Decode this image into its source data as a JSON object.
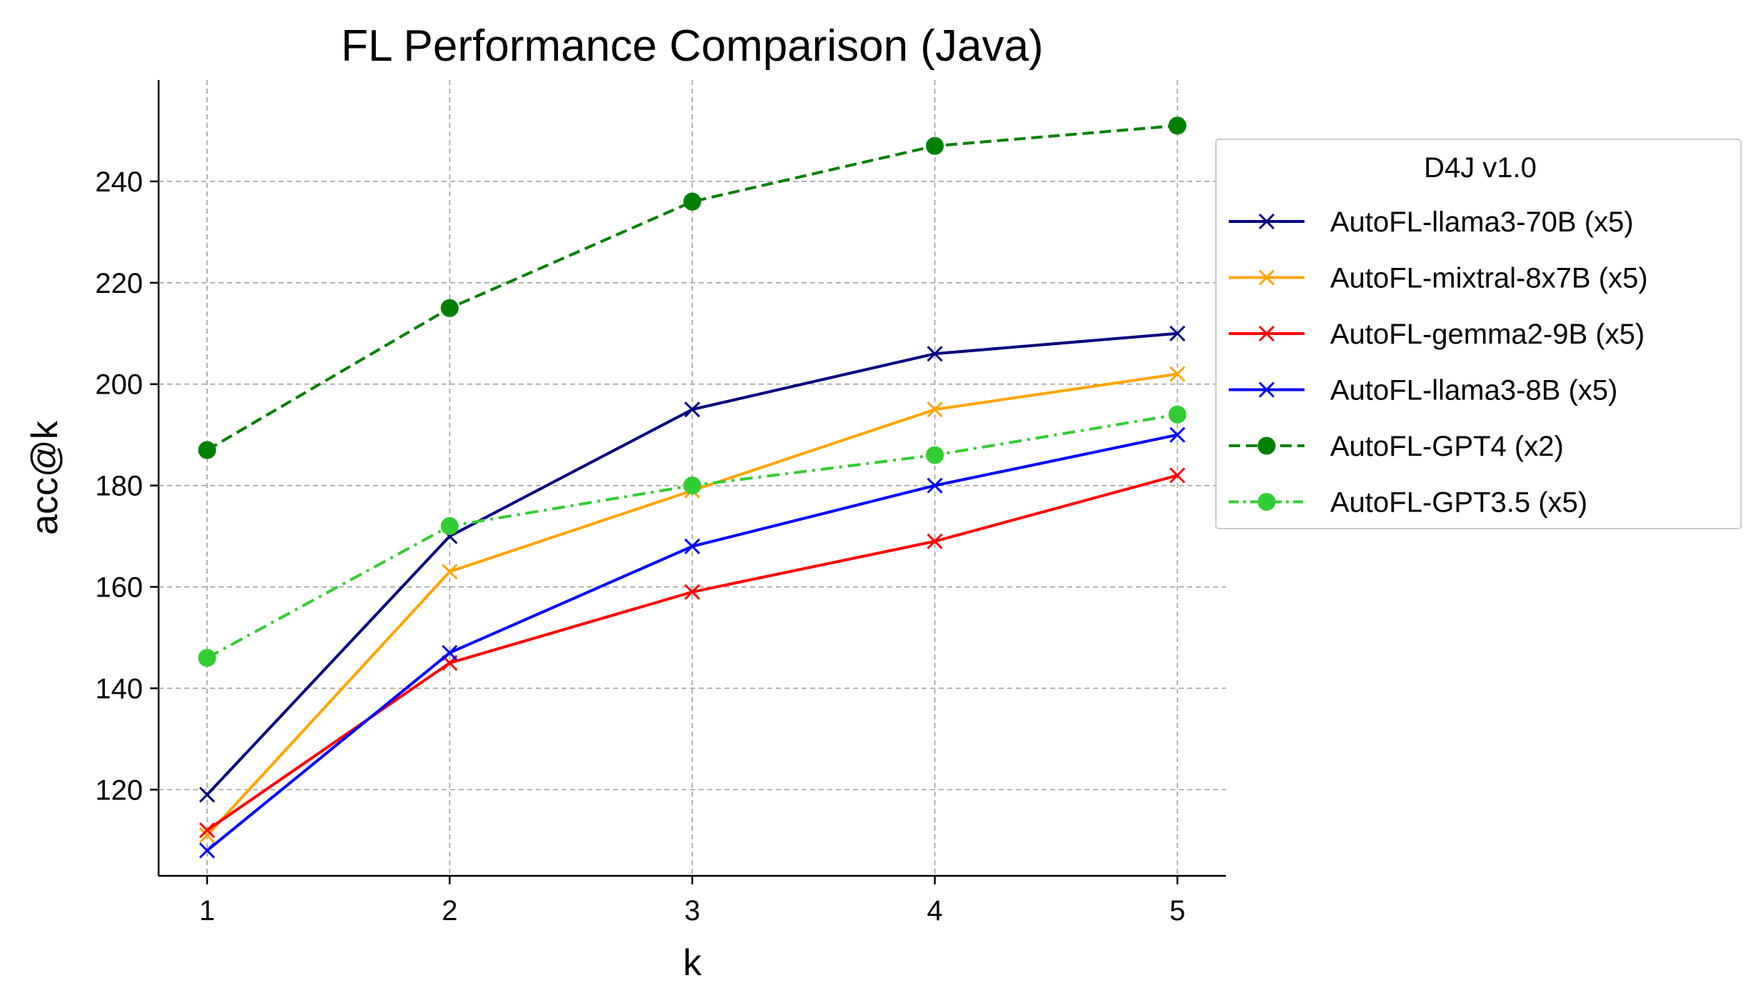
{
  "chart_data": {
    "type": "line",
    "title": "FL Performance Comparison (Java)",
    "xlabel": "k",
    "ylabel": "acc@k",
    "x": [
      1,
      2,
      3,
      4,
      5
    ],
    "xticks": [
      "1",
      "2",
      "3",
      "4",
      "5"
    ],
    "yticks": [
      120,
      140,
      160,
      180,
      200,
      220,
      240
    ],
    "xlim": [
      0.8,
      5.2
    ],
    "ylim": [
      103,
      260
    ],
    "grid": true,
    "legend": {
      "title": "D4J v1.0",
      "placement": "outside right"
    },
    "series": [
      {
        "name": "AutoFL-llama3-70B (x5)",
        "values": [
          119,
          170,
          195,
          206,
          210
        ],
        "color": "#000080",
        "marker": "x",
        "linestyle": "solid"
      },
      {
        "name": "AutoFL-mixtral-8x7B (x5)",
        "values": [
          111,
          163,
          179,
          195,
          202
        ],
        "color": "#FFA500",
        "marker": "x",
        "linestyle": "solid"
      },
      {
        "name": "AutoFL-gemma2-9B (x5)",
        "values": [
          112,
          145,
          159,
          169,
          182
        ],
        "color": "#FF0000",
        "marker": "x",
        "linestyle": "solid"
      },
      {
        "name": "AutoFL-llama3-8B (x5)",
        "values": [
          108,
          147,
          168,
          180,
          190
        ],
        "color": "#0000FF",
        "marker": "x",
        "linestyle": "solid"
      },
      {
        "name": "AutoFL-GPT4 (x2)",
        "values": [
          187,
          215,
          236,
          247,
          251
        ],
        "color": "#008000",
        "marker": "o",
        "linestyle": "dashed"
      },
      {
        "name": "AutoFL-GPT3.5 (x5)",
        "values": [
          146,
          172,
          180,
          186,
          194
        ],
        "color": "#32CD32",
        "marker": "o",
        "linestyle": "dashdot"
      }
    ]
  }
}
